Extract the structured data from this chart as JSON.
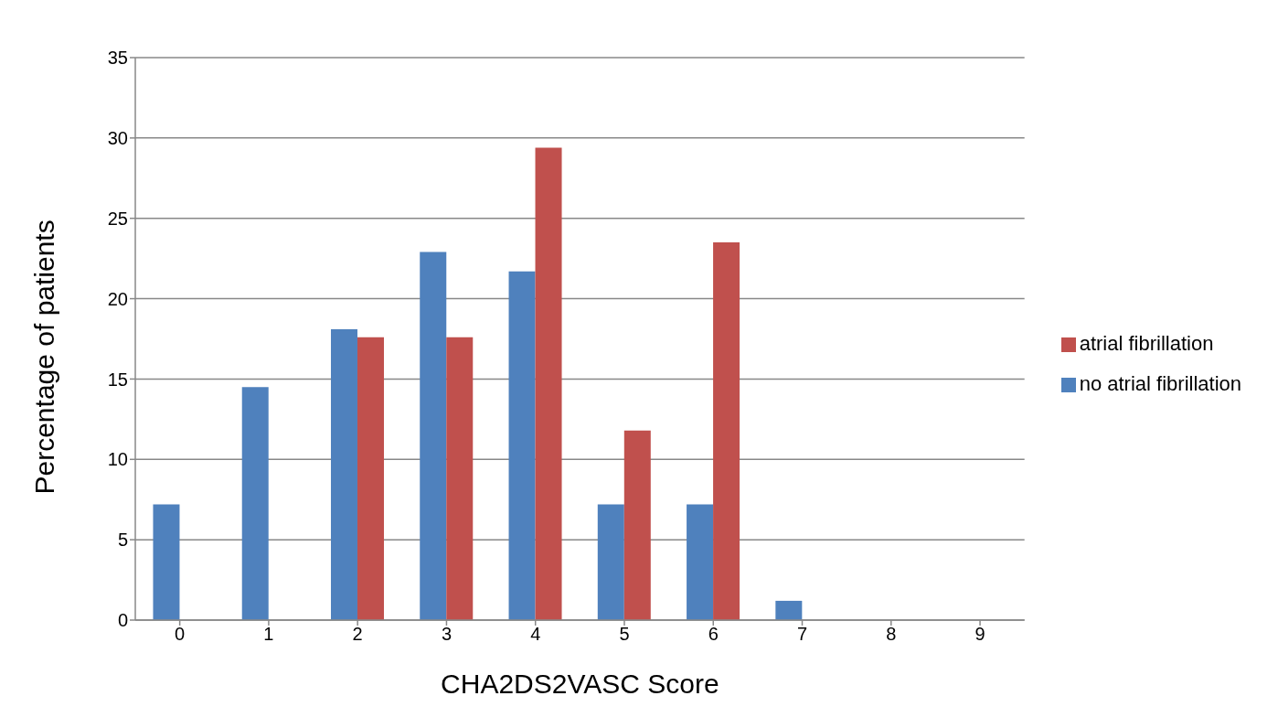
{
  "chart_data": {
    "type": "bar",
    "xlabel": "CHA2DS2VASC Score",
    "ylabel": "Percentage of patients",
    "categories": [
      "0",
      "1",
      "2",
      "3",
      "4",
      "5",
      "6",
      "7",
      "8",
      "9"
    ],
    "series": [
      {
        "name": "no atrial fibrillation",
        "color": "#4f81bd",
        "values": [
          7.2,
          14.5,
          18.1,
          22.9,
          21.7,
          7.2,
          7.2,
          1.2,
          0,
          0
        ]
      },
      {
        "name": "atrial fibrillation",
        "color": "#c0504d",
        "values": [
          0,
          0,
          17.6,
          17.6,
          29.4,
          11.8,
          23.5,
          0,
          0,
          0
        ]
      }
    ],
    "ylim": [
      0,
      35
    ],
    "yticks": [
      0,
      5,
      10,
      15,
      20,
      25,
      30,
      35
    ],
    "grid": "y",
    "legend": "right"
  }
}
